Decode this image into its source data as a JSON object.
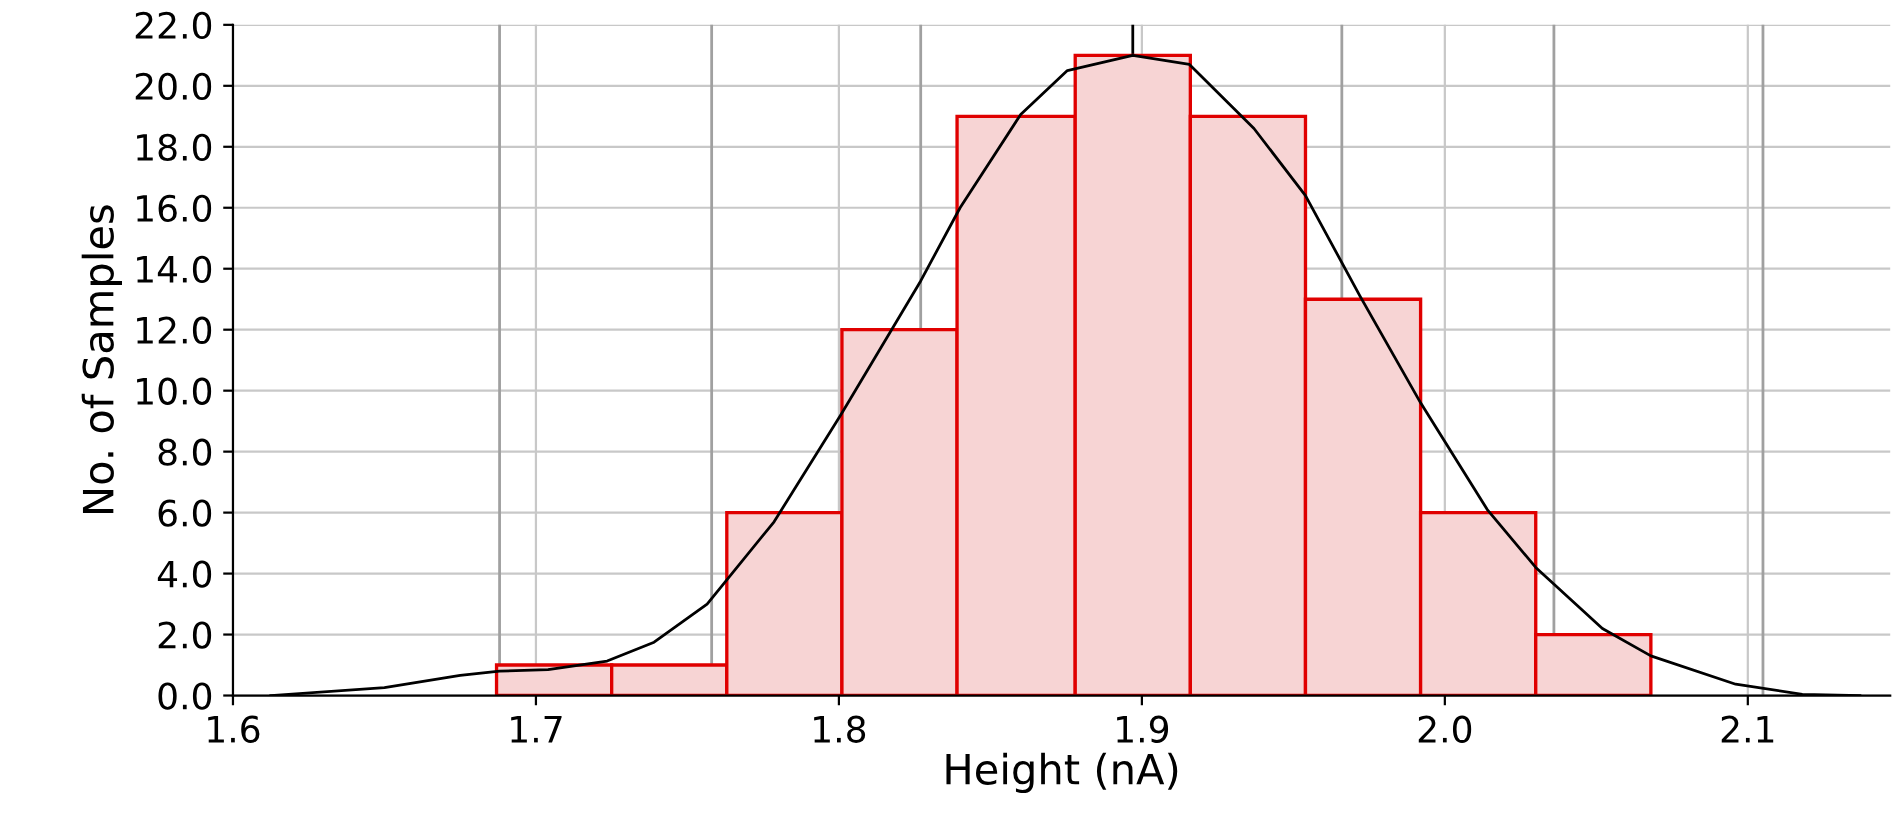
{
  "chart_data": {
    "type": "histogram",
    "xlabel": "Height (nA)",
    "ylabel": "No. of Samples",
    "xlim": [
      1.6,
      2.147
    ],
    "xticks": [
      {
        "value": 1.6,
        "label": "1.6"
      },
      {
        "value": 1.7,
        "label": "1.7"
      },
      {
        "value": 1.8,
        "label": "1.8"
      },
      {
        "value": 1.9,
        "label": "1.9"
      },
      {
        "value": 2.0,
        "label": "2.0"
      },
      {
        "value": 2.1,
        "label": "2.1"
      }
    ],
    "ylim": [
      0,
      22
    ],
    "yticks": [
      {
        "value": 0,
        "label": "0.0"
      },
      {
        "value": 2,
        "label": "2.0"
      },
      {
        "value": 4,
        "label": "4.0"
      },
      {
        "value": 6,
        "label": "6.0"
      },
      {
        "value": 8,
        "label": "8.0"
      },
      {
        "value": 10,
        "label": "10.0"
      },
      {
        "value": 12,
        "label": "12.0"
      },
      {
        "value": 14,
        "label": "14.0"
      },
      {
        "value": 16,
        "label": "16.0"
      },
      {
        "value": 18,
        "label": "18.0"
      },
      {
        "value": 20,
        "label": "20.0"
      },
      {
        "value": 22,
        "label": "22.0"
      }
    ],
    "grid": true,
    "series": [
      {
        "color": "#f7d4d4",
        "bins": [
          1.687,
          1.725,
          1.763,
          1.801,
          1.839,
          1.878,
          1.916,
          1.954,
          1.992,
          2.03,
          2.068
        ],
        "values": [
          1,
          1,
          6,
          12,
          19,
          21,
          19,
          13,
          6,
          2
        ]
      },
      {
        "type": "line",
        "color": "#000000",
        "x": [
          1.6125,
          1.65,
          1.675,
          1.688,
          1.704,
          1.7235,
          1.739,
          1.7565,
          1.7786,
          1.8006,
          1.827,
          1.84,
          1.86,
          1.8754,
          1.897,
          1.9157,
          1.937,
          1.954,
          1.972,
          1.992,
          2.014,
          2.03,
          2.052,
          2.068,
          2.096,
          2.118,
          2.137
        ],
        "values": [
          0,
          0.26,
          0.66,
          0.8,
          0.85,
          1.13,
          1.75,
          3.0,
          5.7,
          9.2,
          13.6,
          16.0,
          19.06,
          20.5,
          21.0,
          20.7,
          18.6,
          16.4,
          13.1,
          9.6,
          6.1,
          4.2,
          2.2,
          1.3,
          0.37,
          0.04,
          0
        ]
      }
    ],
    "ref_lines": [
      {
        "axis": "x",
        "value": 1.897,
        "color": "#000000"
      },
      {
        "axis": "x",
        "value": 1.688,
        "color": "#a0a0a0"
      },
      {
        "axis": "x",
        "value": 1.758,
        "color": "#a0a0a0"
      },
      {
        "axis": "x",
        "value": 1.827,
        "color": "#a0a0a0"
      },
      {
        "axis": "x",
        "value": 1.966,
        "color": "#a0a0a0"
      },
      {
        "axis": "x",
        "value": 2.036,
        "color": "#a0a0a0"
      },
      {
        "axis": "x",
        "value": 2.105,
        "color": "#a0a0a0"
      }
    ]
  }
}
